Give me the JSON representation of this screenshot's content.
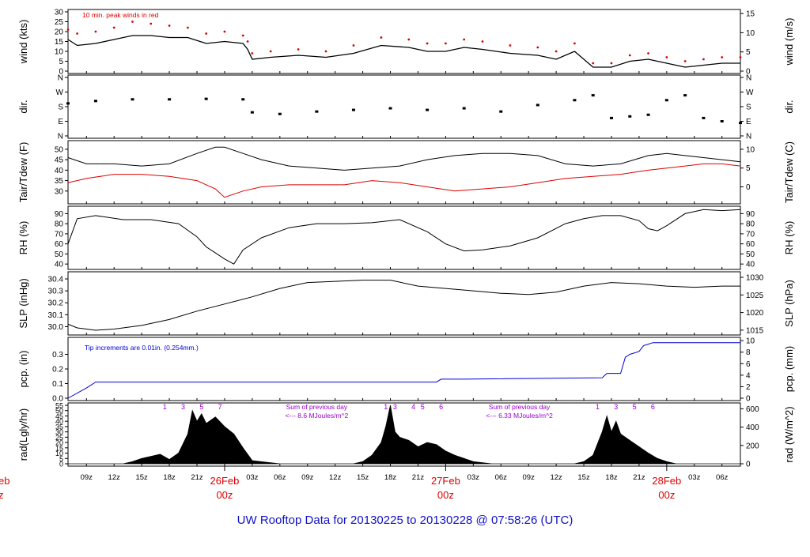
{
  "title": "UW Rooftop Data for 20130225  to  20130228 @ 07:58:26  (UTC)",
  "colors": {
    "ink": "#000000",
    "red": "#dd0000",
    "blue": "#0000dd",
    "purple": "#9900cc",
    "title_blue": "#1010c8"
  },
  "time_axis": {
    "start_hour": 7,
    "end_hour": 80,
    "tick_labels": [
      "09z",
      "12z",
      "15z",
      "18z",
      "21z",
      "03z",
      "06z",
      "09z",
      "12z",
      "15z",
      "18z",
      "21z",
      "03z",
      "06z",
      "09z",
      "12z",
      "15z",
      "18z",
      "21z",
      "03z",
      "06z"
    ],
    "day_labels": [
      {
        "date": "26Feb",
        "hour_label": "00z"
      },
      {
        "date": "27Feb",
        "hour_label": "00z"
      },
      {
        "date": "28Feb",
        "hour_label": "00z"
      }
    ],
    "cut_left_date": "eb",
    "cut_left_hour": "z"
  },
  "panels": [
    {
      "id": "wind",
      "left_label": "wind (kts)",
      "right_label": "wind (m/s)",
      "left_ticks": [
        "0",
        "5",
        "10",
        "15",
        "20",
        "25",
        "30"
      ],
      "right_ticks": [
        "0",
        "5",
        "10",
        "15"
      ],
      "note": "10 min. peak winds in red"
    },
    {
      "id": "dir",
      "left_label": "dir.",
      "right_label": "dir.",
      "left_ticks": [
        "N",
        "E",
        "S",
        "W",
        "N"
      ],
      "right_ticks": [
        "N",
        "E",
        "S",
        "W",
        "N"
      ]
    },
    {
      "id": "temp",
      "left_label": "Tair/Tdew (F)",
      "right_label": "Tair/Tdew (C)",
      "left_ticks": [
        "30",
        "35",
        "40",
        "45",
        "50"
      ],
      "right_ticks": [
        "0",
        "5",
        "10"
      ]
    },
    {
      "id": "rh",
      "left_label": "RH (%)",
      "right_label": "RH (%)",
      "left_ticks": [
        "40",
        "50",
        "60",
        "70",
        "80",
        "90"
      ],
      "right_ticks": [
        "40",
        "50",
        "60",
        "70",
        "80",
        "90"
      ]
    },
    {
      "id": "slp",
      "left_label": "SLP (inHg)",
      "right_label": "SLP (hPa)",
      "left_ticks": [
        "30.0",
        "30.1",
        "30.2",
        "30.3",
        "30.4"
      ],
      "right_ticks": [
        "1015",
        "1020",
        "1025",
        "1030"
      ]
    },
    {
      "id": "pcp",
      "left_label": "pcp. (in)",
      "right_label": "pcp. (mm)",
      "left_ticks": [
        "0.0",
        "0.1",
        "0.2",
        "0.3"
      ],
      "right_ticks": [
        "0",
        "2",
        "4",
        "6",
        "8",
        "10"
      ],
      "note": "Tip increments are 0.01in. (0.254mm.)"
    },
    {
      "id": "rad",
      "left_label": "rad(Lgly/hr)",
      "right_label": "rad (W/m^2)",
      "left_ticks": [
        "0",
        "5",
        "10",
        "15",
        "20",
        "25",
        "30",
        "35",
        "40",
        "45",
        "50",
        "55"
      ],
      "right_ticks": [
        "0",
        "200",
        "400",
        "600"
      ]
    }
  ],
  "radiation_annotations": {
    "hour_marks": [
      [
        "1",
        "3",
        "5",
        "7"
      ],
      [
        "1",
        "3",
        "4",
        "5",
        "6"
      ],
      [
        "1",
        "3",
        "5",
        "6"
      ]
    ],
    "daily_sums": [
      {
        "line1": "Sum of previous day",
        "line2": "<--- 8.6 MJoules/m^2"
      },
      {
        "line1": "Sum of previous day",
        "line2": "<--- 6.33 MJoules/m^2"
      }
    ]
  },
  "chart_data": [
    {
      "type": "line",
      "panel": "wind",
      "ylim": [
        0,
        30
      ],
      "ylabel": "wind (kts)",
      "x_unit": "hours after 25Feb 00z",
      "series": [
        {
          "name": "mean wind (kts)",
          "x": [
            7,
            8,
            10,
            12,
            14,
            16,
            18,
            20,
            22,
            24,
            26,
            26.5,
            27,
            29,
            32,
            35,
            38,
            41,
            44,
            46,
            48,
            50,
            52,
            55,
            58,
            60,
            62,
            64,
            66,
            68,
            70,
            72,
            74,
            76,
            78,
            80
          ],
          "values": [
            16,
            13,
            14,
            16,
            18,
            18,
            17,
            17,
            14,
            15,
            14,
            11,
            6,
            7,
            8,
            7,
            9,
            13,
            12,
            10,
            10,
            12,
            11,
            9,
            8,
            6,
            10,
            2,
            2,
            5,
            6,
            4,
            2,
            3,
            4,
            4
          ]
        },
        {
          "name": "10 min peak (kts)",
          "x": [
            7,
            8,
            10,
            12,
            14,
            16,
            18,
            20,
            22,
            24,
            26,
            26.5,
            27,
            29,
            32,
            35,
            38,
            41,
            44,
            46,
            48,
            50,
            52,
            55,
            58,
            60,
            62,
            64,
            66,
            68,
            70,
            72,
            74,
            76,
            78,
            80
          ],
          "values": [
            21,
            19,
            20,
            22,
            25,
            24,
            23,
            22,
            19,
            20,
            18,
            15,
            9,
            10,
            11,
            10,
            13,
            17,
            16,
            14,
            14,
            16,
            15,
            13,
            12,
            10,
            14,
            4,
            4,
            8,
            9,
            7,
            5,
            6,
            7,
            7
          ]
        }
      ]
    },
    {
      "type": "scatter",
      "panel": "dir",
      "ylim": [
        0,
        360
      ],
      "ylabel": "dir.",
      "x_unit": "hours after 25Feb 00z",
      "series": [
        {
          "name": "wind direction (deg)",
          "x": [
            7,
            10,
            14,
            18,
            22,
            26,
            27,
            30,
            34,
            38,
            42,
            46,
            50,
            54,
            58,
            62,
            64,
            66,
            68,
            70,
            72,
            74,
            76,
            78,
            80
          ],
          "values": [
            200,
            215,
            225,
            225,
            228,
            225,
            145,
            135,
            150,
            160,
            170,
            160,
            170,
            150,
            190,
            220,
            250,
            110,
            120,
            130,
            220,
            250,
            110,
            90,
            80
          ]
        }
      ]
    },
    {
      "type": "line",
      "panel": "temp",
      "ylim": [
        25,
        53
      ],
      "ylabel": "Tair/Tdew (F)",
      "x_unit": "hours after 25Feb 00z",
      "series": [
        {
          "name": "Tair (F)",
          "x": [
            7,
            9,
            12,
            15,
            18,
            21,
            23,
            24,
            26,
            28,
            31,
            34,
            37,
            40,
            43,
            46,
            49,
            52,
            55,
            58,
            61,
            64,
            67,
            70,
            72,
            74,
            76,
            78,
            80
          ],
          "values": [
            46,
            43,
            43,
            42,
            43,
            48,
            51,
            51,
            48,
            45,
            42,
            41,
            40,
            41,
            42,
            45,
            47,
            48,
            48,
            47,
            43,
            42,
            43,
            47,
            48,
            47,
            46,
            45,
            44
          ]
        },
        {
          "name": "Tdew (F)",
          "x": [
            7,
            9,
            12,
            15,
            18,
            21,
            22,
            23,
            24,
            26,
            28,
            31,
            34,
            37,
            40,
            43,
            46,
            49,
            52,
            55,
            58,
            61,
            64,
            67,
            70,
            72,
            74,
            76,
            78,
            80
          ],
          "values": [
            34,
            36,
            38,
            38,
            37,
            35,
            33,
            31,
            27,
            30,
            32,
            33,
            33,
            33,
            35,
            34,
            32,
            30,
            31,
            32,
            34,
            36,
            37,
            38,
            40,
            41,
            42,
            43,
            43,
            42
          ]
        }
      ]
    },
    {
      "type": "line",
      "panel": "rh",
      "ylim": [
        37,
        95
      ],
      "ylabel": "RH (%)",
      "x_unit": "hours after 25Feb 00z",
      "series": [
        {
          "name": "RH (%)",
          "x": [
            7,
            8,
            10,
            13,
            16,
            19,
            21,
            22,
            23,
            24,
            25,
            26,
            28,
            31,
            34,
            37,
            40,
            43,
            46,
            48,
            50,
            52,
            55,
            58,
            61,
            63,
            65,
            67,
            69,
            70,
            71,
            72,
            74,
            76,
            78,
            80
          ],
          "values": [
            60,
            85,
            88,
            84,
            84,
            80,
            67,
            57,
            51,
            45,
            40,
            54,
            66,
            76,
            80,
            80,
            81,
            84,
            72,
            60,
            53,
            54,
            58,
            66,
            80,
            85,
            88,
            88,
            83,
            75,
            73,
            78,
            90,
            94,
            93,
            94
          ]
        }
      ]
    },
    {
      "type": "line",
      "panel": "slp",
      "ylim": [
        29.95,
        30.44
      ],
      "ylabel": "SLP (inHg)",
      "x_unit": "hours after 25Feb 00z",
      "series": [
        {
          "name": "SLP (inHg)",
          "x": [
            7,
            8,
            10,
            12,
            15,
            18,
            21,
            24,
            27,
            30,
            33,
            36,
            39,
            42,
            45,
            48,
            51,
            54,
            57,
            60,
            63,
            66,
            69,
            72,
            75,
            78,
            80
          ],
          "values": [
            30.02,
            29.99,
            29.97,
            29.98,
            30.01,
            30.06,
            30.13,
            30.19,
            30.25,
            30.32,
            30.37,
            30.38,
            30.39,
            30.39,
            30.34,
            30.32,
            30.3,
            30.28,
            30.27,
            30.29,
            30.34,
            30.37,
            30.36,
            30.34,
            30.33,
            30.34,
            30.34
          ]
        }
      ]
    },
    {
      "type": "line",
      "panel": "pcp",
      "ylim": [
        0,
        0.4
      ],
      "ylabel": "pcp. (in)",
      "x_unit": "hours after 25Feb 00z",
      "series": [
        {
          "name": "accumulated precipitation (in)",
          "x": [
            7,
            9,
            10,
            10.5,
            47,
            47.5,
            50,
            65,
            65.5,
            67,
            67.5,
            68,
            69,
            69.5,
            70,
            70.5,
            72,
            80
          ],
          "values": [
            0.0,
            0.07,
            0.11,
            0.11,
            0.11,
            0.13,
            0.13,
            0.14,
            0.17,
            0.17,
            0.28,
            0.3,
            0.32,
            0.36,
            0.37,
            0.38,
            0.38,
            0.38
          ]
        }
      ]
    },
    {
      "type": "area",
      "panel": "rad",
      "ylim": [
        0,
        55
      ],
      "ylabel": "rad(Lgly/hr)",
      "x_unit": "hours after 25Feb 00z",
      "series": [
        {
          "name": "solar radiation (Lgly/hr)",
          "x": [
            7,
            13,
            14,
            15,
            16,
            17,
            18,
            19,
            20,
            20.5,
            21,
            21.5,
            22,
            23,
            24,
            25,
            26,
            27,
            30,
            38,
            39,
            40,
            41,
            41.5,
            42,
            42.5,
            43,
            44,
            45,
            46,
            47,
            48,
            49,
            50,
            51,
            53,
            62,
            63,
            64,
            65,
            65.5,
            66,
            66.5,
            67,
            68,
            69,
            70,
            71,
            72,
            73,
            76,
            80
          ],
          "values": [
            0,
            0,
            2,
            5,
            7,
            9,
            4,
            10,
            28,
            50,
            40,
            47,
            38,
            44,
            35,
            28,
            15,
            3,
            0,
            0,
            2,
            8,
            20,
            35,
            55,
            30,
            25,
            22,
            16,
            20,
            18,
            12,
            8,
            5,
            2,
            0,
            0,
            2,
            8,
            30,
            45,
            30,
            40,
            28,
            22,
            16,
            10,
            5,
            2,
            0,
            0,
            0
          ]
        }
      ]
    }
  ]
}
